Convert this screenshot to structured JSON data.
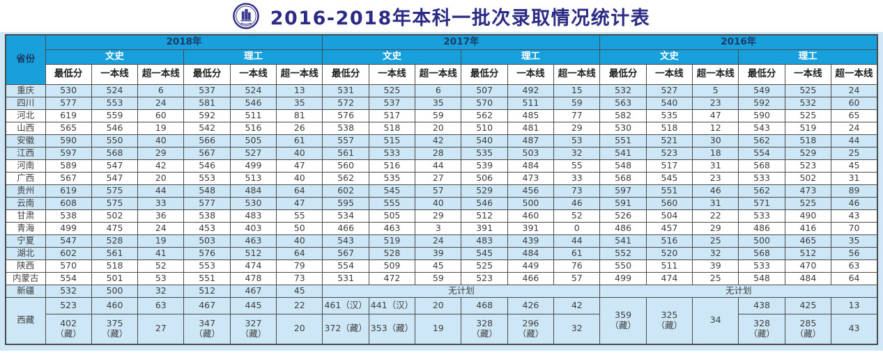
{
  "title": "2016-2018年本科一批次录取情况统计表",
  "logo": {
    "name": "university-emblem"
  },
  "colors": {
    "header_cyan": "#18a0dc",
    "row_light_blue": "#cde7f7",
    "title_navy": "#2b2b85",
    "year_text_navy": "#1d3a66"
  },
  "table": {
    "province_header": "省份",
    "years": [
      "2018年",
      "2017年",
      "2016年"
    ],
    "tracks": [
      "文史",
      "理工"
    ],
    "metrics": [
      "最低分",
      "一本线",
      "超一本线"
    ],
    "no_plan_label": "无计划",
    "rows": [
      {
        "province": "重庆",
        "cells": [
          "530",
          "524",
          "6",
          "537",
          "524",
          "13",
          "531",
          "525",
          "6",
          "507",
          "492",
          "15",
          "532",
          "527",
          "5",
          "549",
          "525",
          "24"
        ]
      },
      {
        "province": "四川",
        "cells": [
          "577",
          "553",
          "24",
          "581",
          "546",
          "35",
          "572",
          "537",
          "35",
          "570",
          "511",
          "59",
          "563",
          "540",
          "23",
          "592",
          "532",
          "60"
        ]
      },
      {
        "province": "河北",
        "cells": [
          "619",
          "559",
          "60",
          "592",
          "511",
          "81",
          "576",
          "517",
          "59",
          "562",
          "485",
          "77",
          "582",
          "535",
          "47",
          "590",
          "525",
          "65"
        ]
      },
      {
        "province": "山西",
        "cells": [
          "565",
          "546",
          "19",
          "542",
          "516",
          "26",
          "538",
          "518",
          "20",
          "510",
          "481",
          "29",
          "530",
          "518",
          "12",
          "543",
          "519",
          "24"
        ]
      },
      {
        "province": "安徽",
        "cells": [
          "590",
          "550",
          "40",
          "566",
          "505",
          "61",
          "557",
          "515",
          "42",
          "540",
          "487",
          "53",
          "551",
          "521",
          "30",
          "562",
          "518",
          "44"
        ]
      },
      {
        "province": "江西",
        "cells": [
          "597",
          "568",
          "29",
          "567",
          "527",
          "40",
          "561",
          "533",
          "28",
          "535",
          "503",
          "32",
          "541",
          "523",
          "18",
          "554",
          "529",
          "25"
        ]
      },
      {
        "province": "河南",
        "cells": [
          "589",
          "547",
          "42",
          "546",
          "499",
          "47",
          "560",
          "516",
          "44",
          "539",
          "484",
          "55",
          "548",
          "517",
          "31",
          "568",
          "523",
          "45"
        ]
      },
      {
        "province": "广西",
        "cells": [
          "567",
          "547",
          "20",
          "553",
          "513",
          "40",
          "562",
          "535",
          "27",
          "506",
          "473",
          "33",
          "568",
          "545",
          "23",
          "533",
          "502",
          "31"
        ]
      },
      {
        "province": "贵州",
        "cells": [
          "619",
          "575",
          "44",
          "548",
          "484",
          "64",
          "602",
          "545",
          "57",
          "529",
          "456",
          "73",
          "597",
          "551",
          "46",
          "562",
          "473",
          "89"
        ]
      },
      {
        "province": "云南",
        "cells": [
          "608",
          "575",
          "33",
          "577",
          "530",
          "47",
          "595",
          "555",
          "40",
          "546",
          "500",
          "46",
          "591",
          "560",
          "31",
          "571",
          "525",
          "46"
        ]
      },
      {
        "province": "甘肃",
        "cells": [
          "538",
          "502",
          "36",
          "538",
          "483",
          "55",
          "534",
          "505",
          "29",
          "512",
          "460",
          "52",
          "526",
          "504",
          "22",
          "533",
          "490",
          "43"
        ]
      },
      {
        "province": "青海",
        "cells": [
          "499",
          "475",
          "24",
          "453",
          "403",
          "50",
          "466",
          "463",
          "3",
          "391",
          "391",
          "0",
          "486",
          "457",
          "29",
          "486",
          "416",
          "70"
        ]
      },
      {
        "province": "宁夏",
        "cells": [
          "547",
          "528",
          "19",
          "503",
          "463",
          "40",
          "543",
          "519",
          "24",
          "483",
          "439",
          "44",
          "541",
          "516",
          "25",
          "500",
          "465",
          "35"
        ]
      },
      {
        "province": "湖北",
        "cells": [
          "602",
          "561",
          "41",
          "576",
          "512",
          "64",
          "567",
          "528",
          "39",
          "545",
          "484",
          "61",
          "552",
          "520",
          "32",
          "568",
          "512",
          "56"
        ]
      },
      {
        "province": "陕西",
        "cells": [
          "570",
          "518",
          "52",
          "553",
          "474",
          "79",
          "554",
          "509",
          "45",
          "525",
          "449",
          "76",
          "550",
          "511",
          "39",
          "533",
          "470",
          "63"
        ]
      },
      {
        "province": "内蒙古",
        "cells": [
          "554",
          "501",
          "53",
          "551",
          "478",
          "73",
          "531",
          "472",
          "59",
          "523",
          "466",
          "57",
          "499",
          "474",
          "25",
          "548",
          "484",
          "64"
        ]
      }
    ],
    "xinjiang": {
      "province": "新疆",
      "cells_2018": [
        "532",
        "500",
        "32",
        "512",
        "467",
        "45"
      ]
    },
    "xizang": {
      "province": "西藏",
      "row1_2018": [
        "523",
        "460",
        "63",
        "467",
        "445",
        "22"
      ],
      "row1_2017": [
        "461（汉）",
        "441（汉）",
        "20",
        "468",
        "426",
        "42"
      ],
      "row1_2016_ligong": [
        "438",
        "425",
        "13"
      ],
      "row2_2018": [
        "402\n（藏）",
        "375\n（藏）",
        "27",
        "347\n（藏）",
        "327\n（藏）",
        "20"
      ],
      "row2_2017": [
        "372（藏）",
        "353（藏）",
        "19",
        "328\n（藏）",
        "296\n（藏）",
        "32"
      ],
      "row2_2016_ligong": [
        "328\n（藏）",
        "285\n（藏）",
        "43"
      ],
      "wenshi_2016_span": [
        "359\n（藏）",
        "325\n（藏）",
        "34"
      ]
    }
  }
}
